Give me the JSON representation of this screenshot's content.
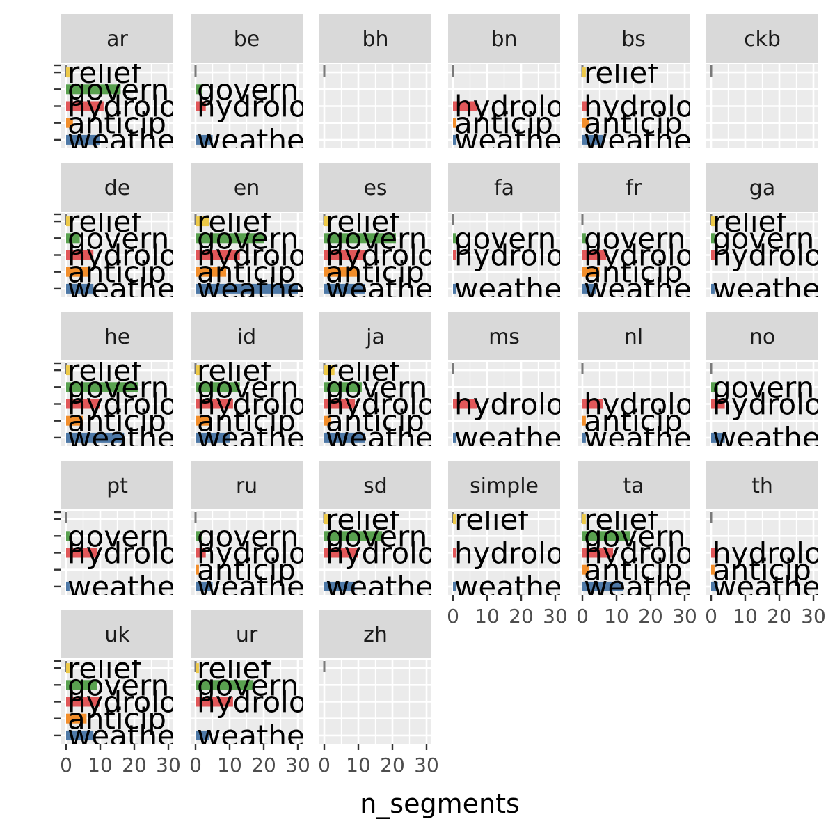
{
  "chart_data": {
    "type": "bar",
    "orientation": "horizontal",
    "facet_layout": "wrap",
    "xlabel": "n_segments",
    "ylabel": "",
    "xlim": [
      0,
      30
    ],
    "x_ticks": [
      0,
      10,
      20,
      30
    ],
    "x_tick_labels": [
      "0",
      "10",
      "20",
      "30"
    ],
    "grid": true,
    "legend": "none",
    "categories": [
      "weather",
      "anticipatory",
      "hydrological",
      "government",
      "relief"
    ],
    "category_display": [
      "weathe",
      "anticip",
      "hydrolo",
      "govern",
      "relief"
    ],
    "category_colors": {
      "weather": "#4e79a7",
      "anticipatory": "#f28e2b",
      "hydrological": "#e15759",
      "government": "#59a14f",
      "relief": "#edc948"
    },
    "panels": [
      {
        "facet": "ar",
        "values": {
          "weather": 10,
          "anticipatory": 2,
          "hydrological": 11,
          "government": 16,
          "relief": 1
        }
      },
      {
        "facet": "be",
        "values": {
          "weather": 5,
          "hydrological": 3,
          "government": 2
        }
      },
      {
        "facet": "bh",
        "values": {}
      },
      {
        "facet": "bn",
        "values": {
          "weather": 1,
          "anticipatory": 1,
          "hydrological": 7
        }
      },
      {
        "facet": "bs",
        "values": {
          "weather": 6,
          "anticipatory": 2,
          "hydrological": 2,
          "relief": 1
        }
      },
      {
        "facet": "ckb",
        "values": {}
      },
      {
        "facet": "de",
        "values": {
          "weather": 8,
          "anticipatory": 7,
          "hydrological": 8,
          "government": 4,
          "relief": 1
        }
      },
      {
        "facet": "en",
        "values": {
          "weather": 30,
          "anticipatory": 9,
          "hydrological": 13,
          "government": 20,
          "relief": 4
        }
      },
      {
        "facet": "es",
        "values": {
          "weather": 12,
          "anticipatory": 10,
          "hydrological": 12,
          "government": 21,
          "relief": 1
        }
      },
      {
        "facet": "fa",
        "values": {
          "weather": 1,
          "hydrological": 1,
          "government": 1
        }
      },
      {
        "facet": "fr",
        "values": {
          "weather": 4,
          "anticipatory": 5,
          "hydrological": 7,
          "government": 1
        }
      },
      {
        "facet": "ga",
        "values": {
          "weather": 1,
          "hydrological": 1,
          "government": 1,
          "relief": 1
        }
      },
      {
        "facet": "he",
        "values": {
          "weather": 17,
          "anticipatory": 5,
          "hydrological": 10,
          "government": 21,
          "relief": 1
        }
      },
      {
        "facet": "id",
        "values": {
          "weather": 10,
          "anticipatory": 4,
          "hydrological": 11,
          "government": 13,
          "relief": 2
        }
      },
      {
        "facet": "ja",
        "values": {
          "weather": 12,
          "anticipatory": 2,
          "hydrological": 9,
          "government": 11,
          "relief": 3
        }
      },
      {
        "facet": "ms",
        "values": {
          "weather": 1,
          "hydrological": 7
        }
      },
      {
        "facet": "nl",
        "values": {
          "weather": 1,
          "anticipatory": 1,
          "hydrological": 6
        }
      },
      {
        "facet": "no",
        "values": {
          "weather": 4,
          "hydrological": 4,
          "government": 2
        }
      },
      {
        "facet": "pt",
        "values": {
          "weather": 1,
          "hydrological": 9,
          "government": 1
        }
      },
      {
        "facet": "ru",
        "values": {
          "weather": 5,
          "anticipatory": 1,
          "hydrological": 3,
          "government": 2
        }
      },
      {
        "facet": "sd",
        "values": {
          "weather": 9,
          "hydrological": 10,
          "government": 17,
          "relief": 1
        }
      },
      {
        "facet": "simple",
        "values": {
          "weather": 1,
          "hydrological": 1,
          "relief": 1
        }
      },
      {
        "facet": "ta",
        "values": {
          "weather": 12,
          "anticipatory": 2,
          "hydrological": 9,
          "government": 14,
          "relief": 1
        }
      },
      {
        "facet": "th",
        "values": {
          "weather": 2,
          "anticipatory": 1,
          "hydrological": 2
        }
      },
      {
        "facet": "uk",
        "values": {
          "weather": 8,
          "anticipatory": 6,
          "hydrological": 10,
          "government": 9,
          "relief": 1
        }
      },
      {
        "facet": "ur",
        "values": {
          "weather": 4,
          "hydrological": 11,
          "government": 17,
          "relief": 1
        }
      },
      {
        "facet": "zh",
        "values": {}
      }
    ]
  }
}
